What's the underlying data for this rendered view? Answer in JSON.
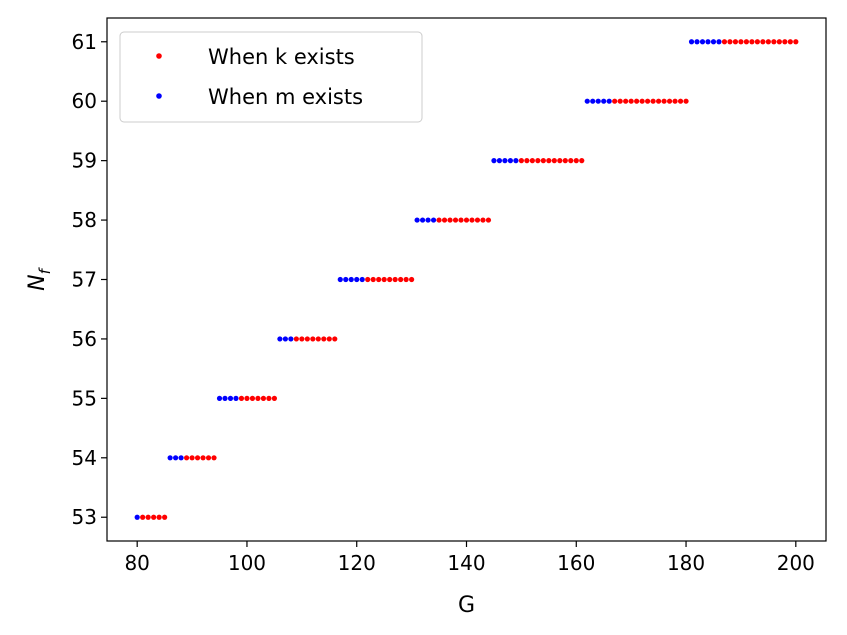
{
  "chart_data": {
    "type": "scatter",
    "xlabel": "G",
    "ylabel": "N",
    "ylabel_sub": "f",
    "xlim": [
      74.5,
      205.5
    ],
    "ylim": [
      52.6,
      61.4
    ],
    "xticks": [
      80,
      100,
      120,
      140,
      160,
      180,
      200
    ],
    "yticks": [
      53,
      54,
      55,
      56,
      57,
      58,
      59,
      60,
      61
    ],
    "grid": false,
    "legend_position": "upper-left",
    "series": [
      {
        "name": "When k exists",
        "color": "#ff0000",
        "points": [
          {
            "y": 53,
            "x": [
              81,
              82,
              83,
              84,
              85
            ]
          },
          {
            "y": 54,
            "x": [
              89,
              90,
              91,
              92,
              93,
              94
            ]
          },
          {
            "y": 55,
            "x": [
              99,
              100,
              101,
              102,
              103,
              104,
              105
            ]
          },
          {
            "y": 56,
            "x": [
              109,
              110,
              111,
              112,
              113,
              114,
              115,
              116
            ]
          },
          {
            "y": 57,
            "x": [
              122,
              123,
              124,
              125,
              126,
              127,
              128,
              129,
              130
            ]
          },
          {
            "y": 58,
            "x": [
              135,
              136,
              137,
              138,
              139,
              140,
              141,
              142,
              143,
              144
            ]
          },
          {
            "y": 59,
            "x": [
              150,
              151,
              152,
              153,
              154,
              155,
              156,
              157,
              158,
              159,
              160,
              161
            ]
          },
          {
            "y": 60,
            "x": [
              167,
              168,
              169,
              170,
              171,
              172,
              173,
              174,
              175,
              176,
              177,
              178,
              179,
              180
            ]
          },
          {
            "y": 61,
            "x": [
              187,
              188,
              189,
              190,
              191,
              192,
              193,
              194,
              195,
              196,
              197,
              198,
              199,
              200
            ]
          }
        ]
      },
      {
        "name": "When m exists",
        "color": "#0000ff",
        "points": [
          {
            "y": 53,
            "x": [
              80
            ]
          },
          {
            "y": 54,
            "x": [
              86,
              87,
              88
            ]
          },
          {
            "y": 55,
            "x": [
              95,
              96,
              97,
              98
            ]
          },
          {
            "y": 56,
            "x": [
              106,
              107,
              108
            ]
          },
          {
            "y": 57,
            "x": [
              117,
              118,
              119,
              120,
              121
            ]
          },
          {
            "y": 58,
            "x": [
              131,
              132,
              133,
              134
            ]
          },
          {
            "y": 59,
            "x": [
              145,
              146,
              147,
              148,
              149
            ]
          },
          {
            "y": 60,
            "x": [
              162,
              163,
              164,
              165,
              166
            ]
          },
          {
            "y": 61,
            "x": [
              181,
              182,
              183,
              184,
              185,
              186
            ]
          }
        ]
      }
    ]
  }
}
